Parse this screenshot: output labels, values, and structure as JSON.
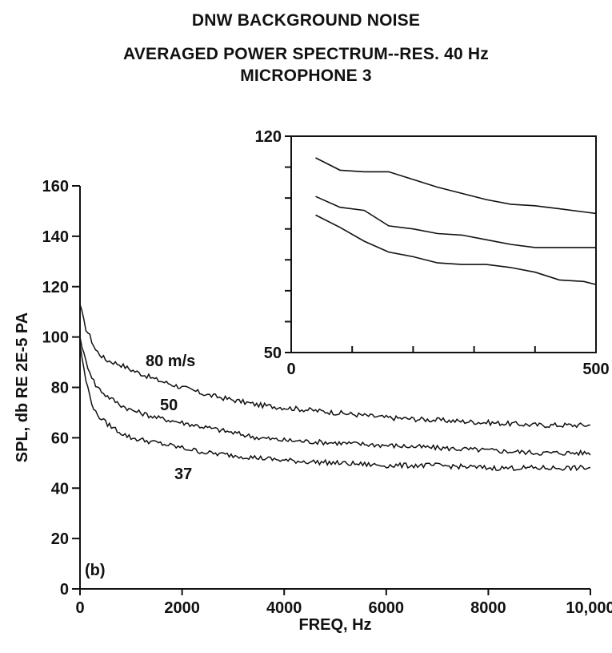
{
  "title_lines": [
    "DNW BACKGROUND NOISE",
    "AVERAGED POWER SPECTRUM--RES. 40 Hz",
    "MICROPHONE 3"
  ],
  "chart_data": [
    {
      "type": "line",
      "xlabel": "FREQ, Hz",
      "ylabel": "SPL, db RE 2E-5 PA",
      "xlim": [
        0,
        10000
      ],
      "ylim": [
        0,
        160
      ],
      "x_ticks": [
        0,
        2000,
        4000,
        6000,
        8000,
        10000
      ],
      "x_tick_labels": [
        "0",
        "2000",
        "4000",
        "6000",
        "8000",
        "10,000"
      ],
      "y_ticks": [
        0,
        20,
        40,
        60,
        80,
        100,
        120,
        140,
        160
      ],
      "panel_label": "(b)",
      "grid": false,
      "series": [
        {
          "name": "80 m/s",
          "x": [
            0,
            100,
            200,
            300,
            500,
            800,
            1000,
            1500,
            2000,
            2500,
            3000,
            3500,
            4000,
            5000,
            6000,
            7000,
            8000,
            9000,
            10000
          ],
          "y": [
            113,
            104,
            100,
            95,
            91,
            89,
            87,
            83,
            80,
            77,
            75,
            73,
            72,
            70,
            68,
            67,
            66,
            65,
            65
          ]
        },
        {
          "name": "50",
          "x": [
            0,
            100,
            200,
            300,
            500,
            800,
            1000,
            1500,
            2000,
            2500,
            3000,
            3500,
            4000,
            5000,
            6000,
            7000,
            8000,
            9000,
            10000
          ],
          "y": [
            100,
            91,
            86,
            81,
            77,
            73,
            71,
            68,
            66,
            64,
            62,
            60,
            59,
            58,
            57,
            56,
            55,
            54,
            54
          ]
        },
        {
          "name": "37",
          "x": [
            0,
            100,
            200,
            300,
            500,
            800,
            1000,
            1500,
            2000,
            2500,
            3000,
            3500,
            4000,
            5000,
            6000,
            7000,
            8000,
            9000,
            10000
          ],
          "y": [
            97,
            84,
            76,
            70,
            66,
            62,
            60,
            58,
            56,
            54,
            53,
            52,
            51,
            50,
            49,
            49,
            48,
            48,
            48
          ]
        }
      ]
    },
    {
      "type": "line",
      "inset": true,
      "xlim": [
        0,
        500
      ],
      "ylim": [
        50,
        120
      ],
      "x_ticks": [
        0,
        100,
        200,
        300,
        400,
        500
      ],
      "x_tick_labels": [
        "0",
        "",
        "",
        "",
        "",
        "500"
      ],
      "y_ticks": [
        50,
        60,
        70,
        80,
        90,
        100,
        110,
        120
      ],
      "y_tick_labels": [
        "50",
        "",
        "",
        "",
        "",
        "",
        "",
        "120"
      ],
      "series": [
        {
          "x": [
            40,
            80,
            120,
            160,
            200,
            240,
            280,
            320,
            360,
            400,
            440,
            480,
            500
          ],
          "y": [
            113,
            109,
            108.5,
            108.5,
            106,
            103.5,
            101.5,
            99.5,
            98,
            97.5,
            96.5,
            95.5,
            95
          ]
        },
        {
          "x": [
            40,
            80,
            120,
            160,
            200,
            240,
            280,
            320,
            360,
            400,
            440,
            480,
            500
          ],
          "y": [
            100.5,
            97,
            96,
            91,
            90,
            88.5,
            88,
            86.5,
            85,
            84,
            84,
            84,
            84
          ]
        },
        {
          "x": [
            40,
            80,
            120,
            160,
            200,
            240,
            280,
            320,
            360,
            400,
            440,
            480,
            500
          ],
          "y": [
            94.5,
            90.5,
            86,
            82.5,
            81,
            79,
            78.5,
            78.5,
            77.5,
            76,
            73.5,
            73,
            72
          ]
        }
      ]
    }
  ]
}
